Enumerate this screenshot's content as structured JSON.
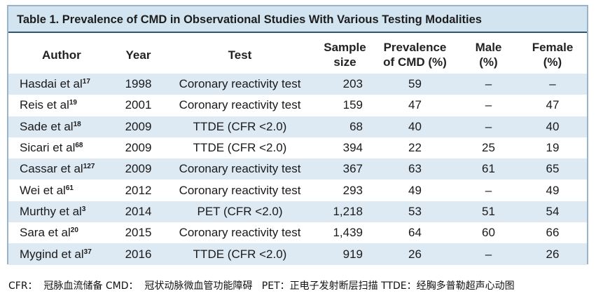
{
  "table": {
    "title": "Table 1.  Prevalence of CMD in Observational Studies With Various Testing Modalities",
    "columns": [
      "Author",
      "Year",
      "Test",
      "Sample\nsize",
      "Prevalence\nof CMD (%)",
      "Male\n(%)",
      "Female\n(%)"
    ],
    "rows": [
      {
        "author": "Hasdai et al",
        "ref": "17",
        "cells": [
          "1998",
          "Coronary reactivity test",
          "203",
          "59",
          "–",
          "–"
        ]
      },
      {
        "author": "Reis et al",
        "ref": "19",
        "cells": [
          "2001",
          "Coronary reactivity test",
          "159",
          "47",
          "–",
          "47"
        ]
      },
      {
        "author": "Sade et al",
        "ref": "18",
        "cells": [
          "2009",
          "TTDE (CFR <2.0)",
          "68",
          "40",
          "–",
          "40"
        ]
      },
      {
        "author": "Sicari et al",
        "ref": "68",
        "cells": [
          "2009",
          "TTDE (CFR <2.0)",
          "394",
          "22",
          "25",
          "19"
        ]
      },
      {
        "author": "Cassar et al",
        "ref": "127",
        "cells": [
          "2009",
          "Coronary reactivity test",
          "367",
          "63",
          "61",
          "65"
        ]
      },
      {
        "author": "Wei et al",
        "ref": "61",
        "cells": [
          "2012",
          "Coronary reactivity test",
          "293",
          "49",
          "–",
          "49"
        ]
      },
      {
        "author": "Murthy et al",
        "ref": "3",
        "cells": [
          "2014",
          "PET (CFR <2.0)",
          "1,218",
          "53",
          "51",
          "54"
        ]
      },
      {
        "author": "Sara et al",
        "ref": "20",
        "cells": [
          "2015",
          "Coronary reactivity test",
          "1,439",
          "64",
          "60",
          "66"
        ]
      },
      {
        "author": "Mygind et al",
        "ref": "37",
        "cells": [
          "2016",
          "TTDE (CFR <2.0)",
          "919",
          "26",
          "–",
          "26"
        ]
      }
    ],
    "footnote": "CFR：  冠脉血流储备 CMD：  冠状动脉微血管功能障碍   PET：正电子发射断层扫描 TTDE：经胸多普勒超声心动图"
  }
}
